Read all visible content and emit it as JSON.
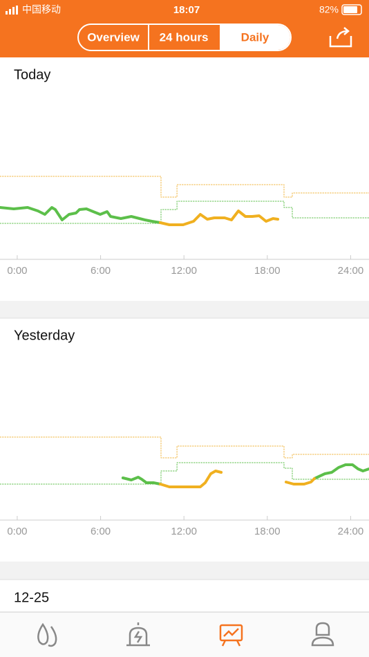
{
  "status_bar": {
    "carrier": "中国移动",
    "time": "18:07",
    "battery": "82%"
  },
  "tabs": {
    "items": [
      "Overview",
      "24 hours",
      "Daily"
    ],
    "selected": 2
  },
  "chart_data": [
    {
      "type": "line",
      "title": "Today",
      "xlim": [
        -1.24,
        25.32
      ],
      "ylim": [
        0,
        10
      ],
      "xticks": [
        {
          "value": 0,
          "label": "0:00"
        },
        {
          "value": 6,
          "label": "6:00"
        },
        {
          "value": 12,
          "label": "12:00"
        },
        {
          "value": 18,
          "label": "18:00"
        },
        {
          "value": 24,
          "label": "24:00"
        }
      ],
      "series": [
        {
          "color": "#f0b43c",
          "style": "dotted",
          "x": [
            -1.24,
            10.35,
            10.35,
            11.5,
            11.5,
            19.2,
            19.2,
            19.8,
            19.8,
            25.32
          ],
          "values": [
            4.8,
            4.8,
            3.6,
            3.6,
            4.32,
            4.32,
            3.6,
            3.6,
            3.84,
            3.84
          ]
        },
        {
          "color": "#5cbf4a",
          "style": "dotted",
          "x": [
            -1.24,
            10.35,
            10.35,
            11.5,
            11.5,
            19.2,
            19.2,
            19.8,
            19.8,
            25.32
          ],
          "values": [
            2.08,
            2.08,
            2.88,
            2.88,
            3.36,
            3.36,
            3.0,
            3.0,
            2.4,
            2.4
          ]
        },
        {
          "color": "#5cbf4a",
          "style": "solid",
          "x": [
            -1.24,
            -0.25,
            0.75,
            1.49,
            1.99,
            2.49,
            2.74,
            3.23,
            3.73,
            4.23,
            4.48,
            4.98,
            5.47,
            5.97,
            6.47,
            6.72,
            7.46,
            8.21,
            9.2,
            9.7,
            10.3
          ],
          "values": [
            3.0,
            2.92,
            3.0,
            2.8,
            2.6,
            3.0,
            2.88,
            2.28,
            2.6,
            2.68,
            2.88,
            2.92,
            2.76,
            2.6,
            2.76,
            2.48,
            2.36,
            2.48,
            2.28,
            2.2,
            2.12
          ]
        },
        {
          "color": "#f0b020",
          "style": "solid",
          "x": [
            10.3,
            10.95,
            11.94,
            12.69,
            13.18,
            13.68,
            14.18,
            14.93,
            15.42,
            15.92,
            16.42,
            16.92,
            17.41,
            17.91,
            18.41,
            18.76
          ],
          "values": [
            2.12,
            2.0,
            2.0,
            2.2,
            2.6,
            2.32,
            2.4,
            2.4,
            2.28,
            2.8,
            2.48,
            2.48,
            2.52,
            2.2,
            2.36,
            2.32
          ]
        }
      ]
    },
    {
      "type": "line",
      "title": "Yesterday",
      "xlim": [
        -1.24,
        25.32
      ],
      "ylim": [
        0,
        10
      ],
      "xticks": [
        {
          "value": 0,
          "label": "0:00"
        },
        {
          "value": 6,
          "label": "6:00"
        },
        {
          "value": 12,
          "label": "12:00"
        },
        {
          "value": 18,
          "label": "18:00"
        },
        {
          "value": 24,
          "label": "24:00"
        }
      ],
      "series": [
        {
          "color": "#f0b43c",
          "style": "dotted",
          "x": [
            -1.24,
            10.35,
            10.35,
            11.5,
            11.5,
            19.2,
            19.2,
            19.8,
            19.8,
            25.32
          ],
          "values": [
            4.8,
            4.8,
            3.6,
            3.6,
            4.28,
            4.28,
            3.6,
            3.6,
            3.8,
            3.8
          ]
        },
        {
          "color": "#5cbf4a",
          "style": "dotted",
          "x": [
            -1.24,
            10.35,
            10.35,
            11.5,
            11.5,
            19.2,
            19.2,
            19.8,
            19.8,
            25.32
          ],
          "values": [
            2.08,
            2.08,
            2.84,
            2.84,
            3.32,
            3.32,
            3.0,
            3.0,
            2.36,
            2.36
          ]
        },
        {
          "color": "#5cbf4a",
          "style": "solid",
          "x": [
            7.61,
            8.21,
            8.71,
            8.96,
            9.3,
            9.8,
            10.3,
            null,
            21.39,
            22.14,
            22.64,
            23.13,
            23.63,
            24.13,
            24.53,
            24.88,
            25.32
          ],
          "values": [
            2.44,
            2.32,
            2.48,
            2.36,
            2.16,
            2.16,
            2.08,
            null,
            2.4,
            2.68,
            2.76,
            3.04,
            3.2,
            3.2,
            2.96,
            2.84,
            2.96
          ]
        },
        {
          "color": "#f0b020",
          "style": "solid",
          "x": [
            10.3,
            10.95,
            11.94,
            13.18,
            13.53,
            13.93,
            14.28,
            14.68,
            null,
            19.35,
            19.9,
            20.65,
            21.14,
            21.39
          ],
          "values": [
            2.08,
            1.92,
            1.92,
            1.92,
            2.16,
            2.68,
            2.84,
            2.76,
            null,
            2.2,
            2.08,
            2.08,
            2.2,
            2.4
          ]
        }
      ]
    }
  ],
  "next_section": {
    "title": "12-25"
  }
}
